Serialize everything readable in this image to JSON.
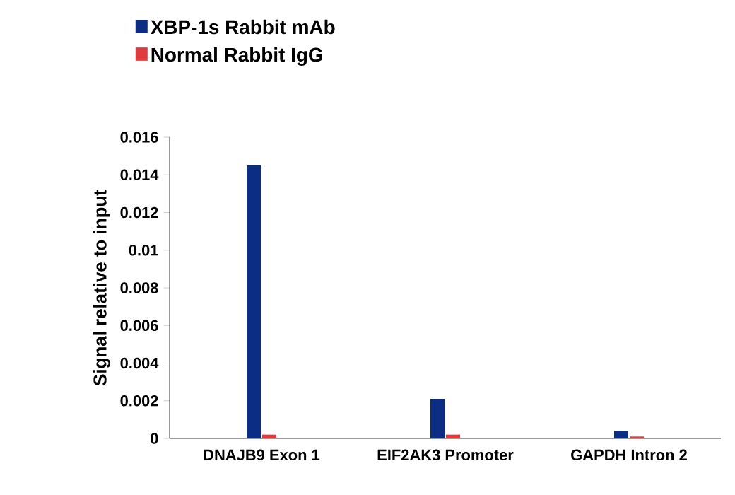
{
  "chart_data": {
    "type": "bar",
    "ylabel": "Signal relative to input",
    "categories": [
      "DNAJB9 Exon 1",
      "EIF2AK3 Promoter",
      "GAPDH Intron 2"
    ],
    "series": [
      {
        "name": "XBP-1s Rabbit mAb",
        "color": "#0b2d84",
        "values": [
          0.0145,
          0.0021,
          0.0004
        ]
      },
      {
        "name": "Normal Rabbit IgG",
        "color": "#e0393e",
        "values": [
          0.0002,
          0.0002,
          0.0001
        ]
      }
    ],
    "ylim": [
      0,
      0.016
    ],
    "yticks": [
      0,
      0.002,
      0.004,
      0.006,
      0.008,
      0.01,
      0.012,
      0.014,
      0.016
    ],
    "grid": false,
    "legend": "top left"
  }
}
